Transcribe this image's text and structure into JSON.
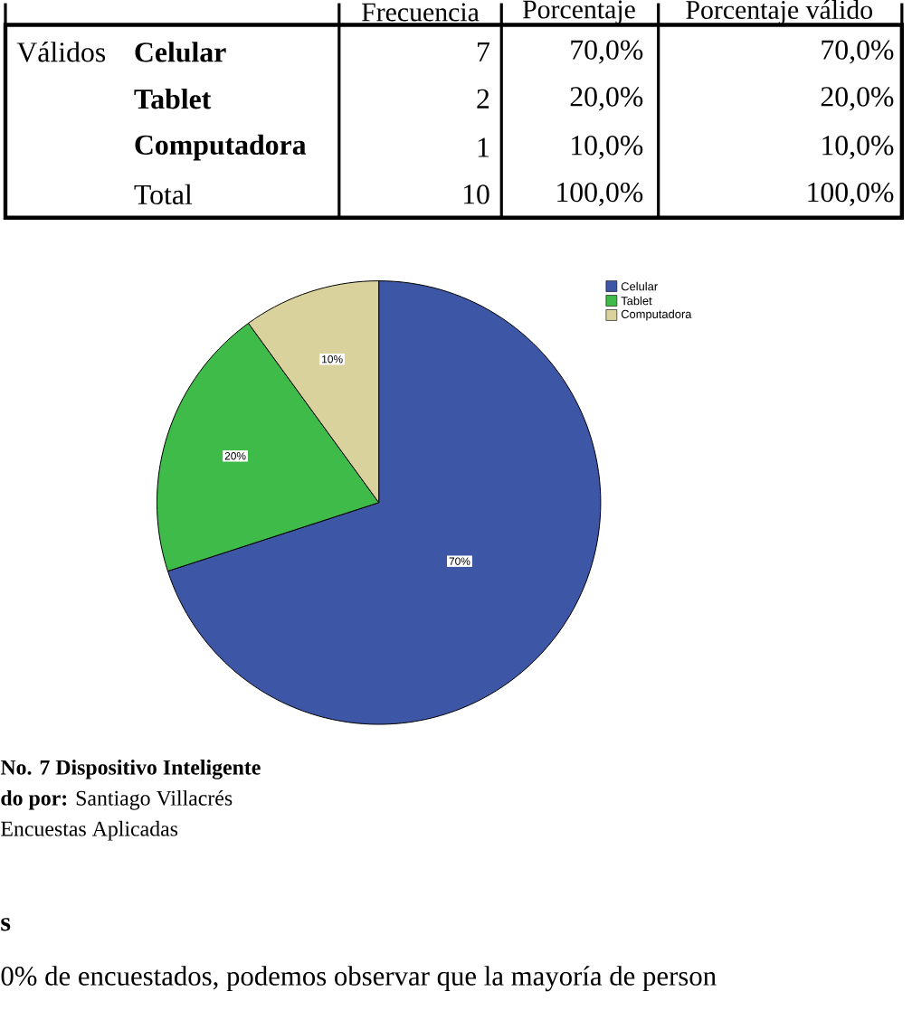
{
  "chart_data": {
    "type": "pie",
    "categories": [
      "Celular",
      "Tablet",
      "Computadora"
    ],
    "values": [
      70,
      20,
      10
    ],
    "colors": [
      "#3e56a6",
      "#3fbb4a",
      "#d9d29c"
    ],
    "value_labels": [
      "70%",
      "20%",
      "10%"
    ],
    "legend": "top right",
    "annotations": [
      "Frecuencia",
      "Porcentaje",
      "Porcentaje válido",
      "Válidos",
      "7",
      "70,0%",
      "70,0%",
      "2",
      "20,0%",
      "20,0%",
      "1",
      "10,0%",
      "10,0%",
      "Total",
      "10",
      "100,0%",
      "100,0%",
      "No. 7 Dispositivo Inteligente",
      "**do por:** Santiago Villacrés",
      "Encuestas Aplicadas",
      "s",
      "0% de encuestados, podemos observar que la mayoría de person"
    ]
  }
}
